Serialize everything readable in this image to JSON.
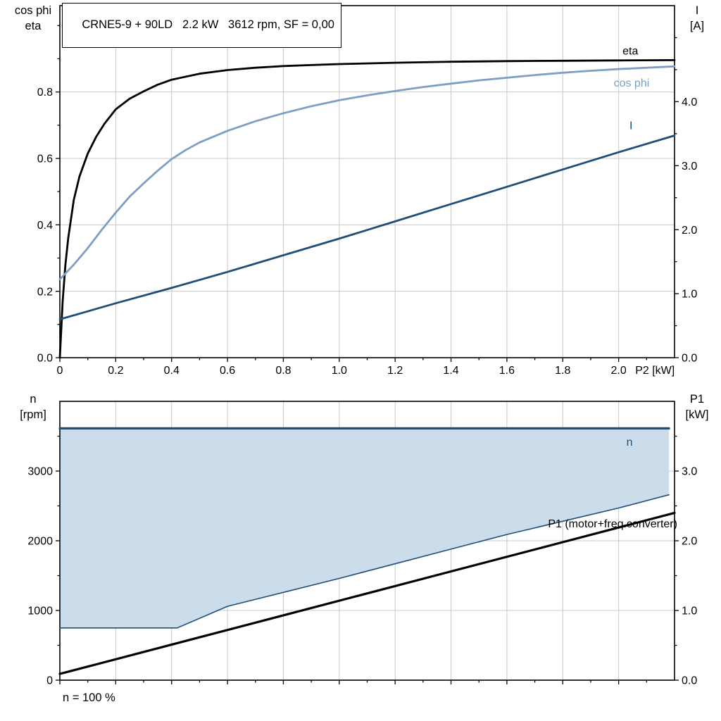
{
  "title": "CRNE5-9 + 90LD   2.2 kW   3612 rpm, SF = 0,00",
  "footnote": "n = 100 %",
  "colors": {
    "black": "#000000",
    "dark_blue": "#1F4E79",
    "steel_blue": "#7E9FC2",
    "area_fill": "#CBDCEB",
    "grid": "#C8C8C8",
    "frame": "#000000"
  },
  "axis_titles": {
    "top_left": [
      "cos phi",
      "eta"
    ],
    "top_right": [
      "I",
      "[A]"
    ],
    "bottom_left": [
      "n",
      "[rpm]"
    ],
    "bottom_right": [
      "P1",
      "[kW]"
    ]
  },
  "chart_data": [
    {
      "type": "line",
      "name": "motor-performance",
      "x_axis": {
        "label": "P2 [kW]",
        "label_x": 2.13,
        "min": 0,
        "max": 2.2,
        "major_ticks": [
          0,
          0.2,
          0.4,
          0.6,
          0.8,
          1.0,
          1.2,
          1.4,
          1.6,
          1.8,
          2.0
        ],
        "tick_labels": [
          "0",
          "0.2",
          "0.4",
          "0.6",
          "0.8",
          "1.0",
          "1.2",
          "1.4",
          "1.6",
          "1.8",
          "2.0"
        ],
        "minor_step": 0.1
      },
      "y_left": {
        "label": "cos phi / eta",
        "min": 0,
        "max": 1.06,
        "major_ticks": [
          0,
          0.2,
          0.4,
          0.6,
          0.8
        ],
        "tick_labels": [
          "0.0",
          "0.2",
          "0.4",
          "0.6",
          "0.8"
        ],
        "minor_step": 0.1
      },
      "y_right": {
        "label": "I [A]",
        "min": 0,
        "max": 5.5,
        "major_ticks": [
          0,
          1,
          2,
          3,
          4
        ],
        "tick_labels": [
          "0.0",
          "1.0",
          "2.0",
          "3.0",
          "4.0"
        ],
        "minor_step": 0.5
      },
      "series": [
        {
          "name": "eta",
          "axis": "left",
          "color": "black",
          "width": 2.8,
          "points": [
            [
              0,
              0
            ],
            [
              0.01,
              0.17
            ],
            [
              0.02,
              0.28
            ],
            [
              0.03,
              0.36
            ],
            [
              0.05,
              0.475
            ],
            [
              0.07,
              0.545
            ],
            [
              0.1,
              0.615
            ],
            [
              0.13,
              0.665
            ],
            [
              0.16,
              0.705
            ],
            [
              0.2,
              0.748
            ],
            [
              0.25,
              0.78
            ],
            [
              0.3,
              0.802
            ],
            [
              0.35,
              0.822
            ],
            [
              0.4,
              0.837
            ],
            [
              0.5,
              0.855
            ],
            [
              0.6,
              0.866
            ],
            [
              0.7,
              0.873
            ],
            [
              0.8,
              0.878
            ],
            [
              0.9,
              0.881
            ],
            [
              1.0,
              0.884
            ],
            [
              1.2,
              0.888
            ],
            [
              1.4,
              0.891
            ],
            [
              1.6,
              0.893
            ],
            [
              1.8,
              0.894
            ],
            [
              2.0,
              0.895
            ],
            [
              2.2,
              0.896
            ]
          ]
        },
        {
          "name": "cos-phi",
          "axis": "left",
          "color": "steel_blue",
          "width": 2.8,
          "points": [
            [
              0,
              0.236
            ],
            [
              0.05,
              0.28
            ],
            [
              0.1,
              0.33
            ],
            [
              0.15,
              0.385
            ],
            [
              0.2,
              0.437
            ],
            [
              0.25,
              0.485
            ],
            [
              0.3,
              0.525
            ],
            [
              0.35,
              0.563
            ],
            [
              0.4,
              0.598
            ],
            [
              0.45,
              0.625
            ],
            [
              0.5,
              0.648
            ],
            [
              0.6,
              0.683
            ],
            [
              0.7,
              0.712
            ],
            [
              0.8,
              0.736
            ],
            [
              0.9,
              0.757
            ],
            [
              1.0,
              0.775
            ],
            [
              1.1,
              0.79
            ],
            [
              1.2,
              0.803
            ],
            [
              1.3,
              0.815
            ],
            [
              1.4,
              0.825
            ],
            [
              1.5,
              0.835
            ],
            [
              1.6,
              0.843
            ],
            [
              1.7,
              0.851
            ],
            [
              1.8,
              0.858
            ],
            [
              1.9,
              0.864
            ],
            [
              2.0,
              0.869
            ],
            [
              2.1,
              0.873
            ],
            [
              2.2,
              0.877
            ]
          ]
        },
        {
          "name": "I",
          "axis": "right",
          "color": "dark_blue",
          "width": 2.8,
          "points": [
            [
              0,
              0.6
            ],
            [
              0.2,
              0.85
            ],
            [
              0.4,
              1.09
            ],
            [
              0.6,
              1.34
            ],
            [
              0.8,
              1.6
            ],
            [
              1.0,
              1.86
            ],
            [
              1.2,
              2.13
            ],
            [
              1.4,
              2.4
            ],
            [
              1.6,
              2.67
            ],
            [
              1.8,
              2.94
            ],
            [
              2.0,
              3.21
            ],
            [
              2.2,
              3.47
            ]
          ]
        }
      ],
      "annotations": [
        {
          "text": "eta",
          "x": 2.07,
          "y": 0.925,
          "axis": "left",
          "color": "black",
          "anchor": "end"
        },
        {
          "text": "cos phi",
          "x": 2.11,
          "y": 0.828,
          "axis": "left",
          "color": "steel_blue",
          "anchor": "end"
        },
        {
          "text": "I",
          "x": 2.05,
          "y": 0.7,
          "axis": "left",
          "color": "dark_blue",
          "anchor": "end"
        }
      ]
    },
    {
      "type": "line",
      "name": "speed-and-power",
      "x_axis": {
        "label": "",
        "label_x": null,
        "min": 0,
        "max": 2.2,
        "major_ticks": [
          0,
          0.2,
          0.4,
          0.6,
          0.8,
          1.0,
          1.2,
          1.4,
          1.6,
          1.8,
          2.0
        ],
        "tick_labels": [
          "",
          "",
          "",
          "",
          "",
          "",
          "",
          "",
          "",
          "",
          ""
        ],
        "minor_step": 0.1
      },
      "y_left": {
        "label": "n [rpm]",
        "min": 0,
        "max": 4000,
        "major_ticks": [
          0,
          1000,
          2000,
          3000
        ],
        "tick_labels": [
          "0",
          "1000",
          "2000",
          "3000"
        ],
        "minor_step": 500
      },
      "y_right": {
        "label": "P1 [kW]",
        "min": 0,
        "max": 4.0,
        "major_ticks": [
          0,
          1,
          2,
          3
        ],
        "tick_labels": [
          "0.0",
          "1.0",
          "2.0",
          "3.0"
        ],
        "minor_step": 0.5
      },
      "area": {
        "between": [
          "n",
          "n-range-lower"
        ],
        "fill": "area_fill"
      },
      "series": [
        {
          "name": "n-range-lower",
          "axis": "left",
          "color": "dark_blue",
          "width": 1.6,
          "points": [
            [
              0,
              750
            ],
            [
              0.42,
              750
            ],
            [
              0.6,
              1060
            ],
            [
              0.8,
              1260
            ],
            [
              1.0,
              1460
            ],
            [
              1.2,
              1670
            ],
            [
              1.4,
              1880
            ],
            [
              1.6,
              2090
            ],
            [
              1.8,
              2280
            ],
            [
              2.0,
              2470
            ],
            [
              2.18,
              2660
            ]
          ]
        },
        {
          "name": "n",
          "axis": "left",
          "color": "dark_blue",
          "width": 3.2,
          "points": [
            [
              0,
              3612
            ],
            [
              2.18,
              3612
            ]
          ]
        },
        {
          "name": "P1-motor-freq-converter",
          "axis": "right",
          "color": "black",
          "width": 3.2,
          "points": [
            [
              0,
              0.09
            ],
            [
              2.2,
              2.4
            ]
          ]
        }
      ],
      "annotations": [
        {
          "text": "n",
          "x": 2.05,
          "y": 3420,
          "axis": "left",
          "color": "dark_blue",
          "anchor": "end"
        },
        {
          "text": "P1 (motor+freq.converter)",
          "x": 2.21,
          "y": 2250,
          "axis": "left",
          "color": "black",
          "anchor": "end"
        }
      ]
    }
  ]
}
